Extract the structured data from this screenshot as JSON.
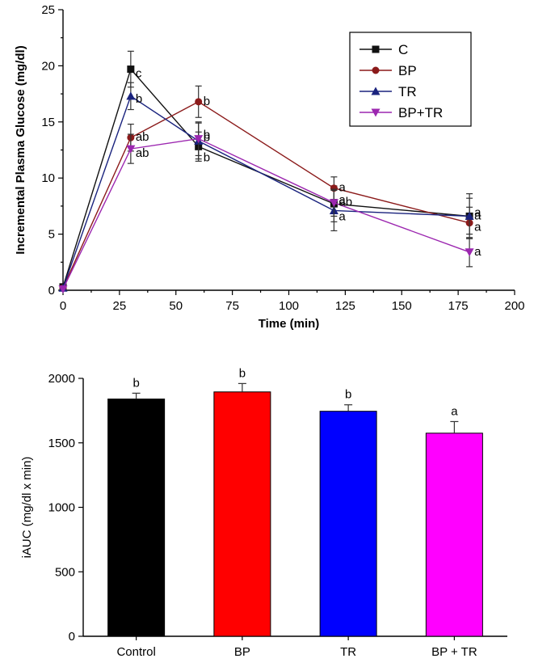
{
  "chart_data": [
    {
      "type": "line",
      "title": "",
      "xlabel": "Time (min)",
      "ylabel": "Incremental Plasma Glucose (mg/dl)",
      "xlim": [
        0,
        200
      ],
      "ylim": [
        0,
        25
      ],
      "xticks": [
        "0",
        "25",
        "50",
        "75",
        "100",
        "125",
        "150",
        "175",
        "200"
      ],
      "yticks": [
        "0",
        "5",
        "10",
        "15",
        "20",
        "25"
      ],
      "legend_position": "top-right",
      "series": [
        {
          "name": "C",
          "color": "#111111",
          "marker": "square",
          "x": [
            0,
            30,
            60,
            120,
            180
          ],
          "y": [
            0.3,
            19.7,
            12.8,
            7.7,
            6.6
          ],
          "err": [
            0,
            1.6,
            1.3,
            1.6,
            1.6
          ],
          "sig": [
            "",
            "c",
            "b",
            "a",
            "a"
          ]
        },
        {
          "name": "BP",
          "color": "#8b1a1a",
          "marker": "circle",
          "x": [
            0,
            30,
            60,
            120,
            180
          ],
          "y": [
            0.2,
            13.6,
            16.8,
            9.1,
            6.0
          ],
          "err": [
            0,
            1.2,
            1.4,
            1.0,
            1.4
          ],
          "sig": [
            "",
            "ab",
            "b",
            "a",
            "a"
          ]
        },
        {
          "name": "TR",
          "color": "#1a237e",
          "marker": "triangle-up",
          "x": [
            0,
            30,
            60,
            120,
            180
          ],
          "y": [
            0.2,
            17.3,
            13.3,
            7.1,
            6.6
          ],
          "err": [
            0,
            1.2,
            1.6,
            1.8,
            2.0
          ],
          "sig": [
            "",
            "b",
            "b",
            "a",
            "a"
          ]
        },
        {
          "name": "BP+TR",
          "color": "#9c27b0",
          "marker": "triangle-down",
          "x": [
            0,
            30,
            60,
            120,
            180
          ],
          "y": [
            0.1,
            12.6,
            13.5,
            7.8,
            3.4
          ],
          "err": [
            0,
            1.3,
            1.5,
            1.2,
            1.3
          ],
          "sig": [
            "",
            "ab",
            "b",
            "ab",
            "a"
          ]
        }
      ]
    },
    {
      "type": "bar",
      "title": "",
      "xlabel": "",
      "ylabel": "iAUC (mg/dl x min)",
      "ylim": [
        0,
        2000
      ],
      "yticks": [
        "0",
        "500",
        "1000",
        "1500",
        "2000"
      ],
      "categories": [
        "Control",
        "BP",
        "TR",
        "BP + TR"
      ],
      "values": [
        1840,
        1895,
        1745,
        1575
      ],
      "errors": [
        45,
        65,
        50,
        90
      ],
      "sig": [
        "b",
        "b",
        "b",
        "a"
      ],
      "colors": [
        "#000000",
        "#ff0000",
        "#0000ff",
        "#ff00ff"
      ]
    }
  ]
}
